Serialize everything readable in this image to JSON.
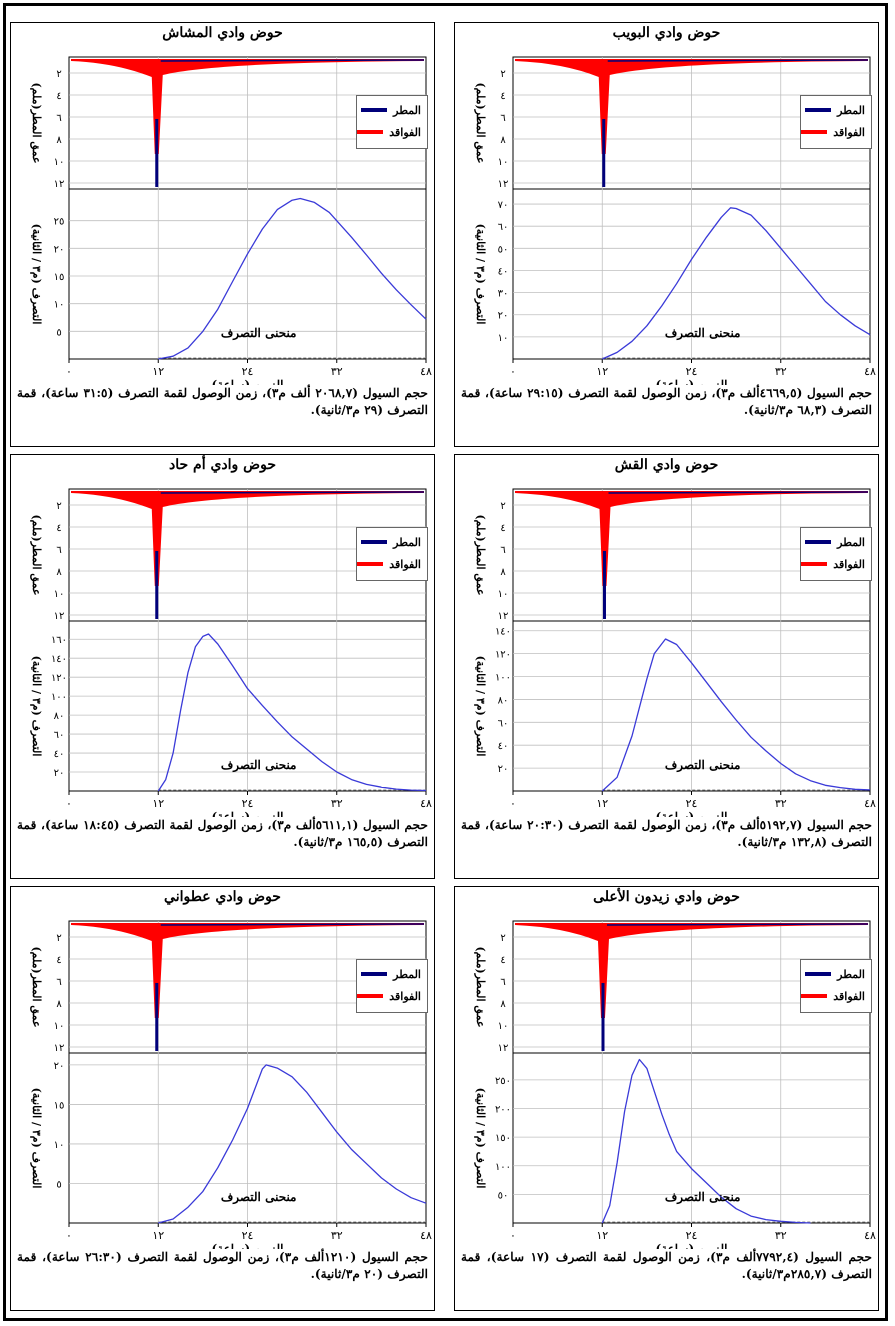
{
  "colors": {
    "rain": "#00007a",
    "losses": "#ff0000",
    "discharge": "#3a3ad8",
    "grid": "#bfbfbf"
  },
  "legend": {
    "rain": "المطر",
    "losses": "الفواقد"
  },
  "axes": {
    "rain_ylabel": "عمق المطر(ملم)",
    "discharge_ylabel": "التصرف (م٣ / الثانية)",
    "xlabel": "الزمن (ساعة)",
    "x_ticks": [
      "٠",
      "١٢",
      "٢٤",
      "٣٢",
      "٤٨"
    ],
    "rain_ticks": [
      "٢",
      "٤",
      "٦",
      "٨",
      "١٠",
      "١٢"
    ]
  },
  "curve_label": "منحنى التصرف",
  "panels": [
    {
      "title": "حوض وادي البويب",
      "caption": "حجم السيول (٤٦٦٩,٥ألف م٣)، زمن الوصول لقمة التصرف (٢٩:١٥ ساعة)، قمة التصرف (٦٨,٣ م٣/ثانية).",
      "discharge_ticks": [
        "١٠",
        "٢٠",
        "٣٠",
        "٤٠",
        "٥٠",
        "٦٠",
        "٧٠"
      ]
    },
    {
      "title": "حوض وادي المشاش",
      "caption": "حجم السيول (٢٠٦٨,٧ ألف م٣)، زمن الوصول لقمة التصرف (٣١:٥ ساعة)، قمة التصرف (٢٩ م٣/ثانية).",
      "discharge_ticks": [
        "٥",
        "١٠",
        "١٥",
        "٢٠",
        "٢٥"
      ]
    },
    {
      "title": "حوض وادي القش",
      "caption": "حجم السيول (٥١٩٢,٧ألف م٣)، زمن الوصول لقمة التصرف (٢٠:٣٠ ساعة)، قمة التصرف (١٣٢,٨ م٣/ثانية).",
      "discharge_ticks": [
        "٢٠",
        "٤٠",
        "٦٠",
        "٨٠",
        "١٠٠",
        "١٢٠",
        "١٤٠"
      ]
    },
    {
      "title": "حوض وادي أم حاد",
      "caption": "حجم السيول (٥٦١١,١ألف م٣)، زمن الوصول لقمة التصرف (١٨:٤٥ ساعة)، قمة التصرف (١٦٥,٥ م٣/ثانية).",
      "discharge_ticks": [
        "٢٠",
        "٤٠",
        "٦٠",
        "٨٠",
        "١٠٠",
        "١٢٠",
        "١٤٠",
        "١٦٠"
      ]
    },
    {
      "title": "حوض وادي زيدون الأعلى",
      "caption": "حجم السيول (٧٧٩٢,٤ألف م٣)، زمن الوصول لقمة التصرف (١٧ ساعة)، قمة التصرف (٢٨٥,٧م٣/ثانية).",
      "discharge_ticks": [
        "٥٠",
        "١٠٠",
        "١٥٠",
        "٢٠٠",
        "٢٥٠"
      ]
    },
    {
      "title": "حوض وادي عطواني",
      "caption": "حجم السيول (١٢١٠ألف م٣)، زمن الوصول لقمة التصرف (٢٦:٣٠ ساعة)، قمة التصرف (٢٠ م٣/ثانية).",
      "discharge_ticks": [
        "٥",
        "١٠",
        "١٥",
        "٢٠"
      ]
    }
  ],
  "chart_data": [
    {
      "type": "line",
      "title": "حوض وادي البويب",
      "xlabel": "الزمن (ساعة)",
      "ylabel": "التصرف (م٣ / الثانية)",
      "xlim": [
        0,
        48
      ],
      "ylim": [
        0,
        75
      ],
      "grid": true,
      "series": [
        {
          "name": "منحنى التصرف",
          "x": [
            12,
            14,
            16,
            18,
            20,
            22,
            24,
            26,
            28,
            29.25,
            30,
            32,
            34,
            36,
            38,
            40,
            42,
            44,
            46,
            48
          ],
          "y": [
            0,
            3,
            8,
            15,
            24,
            34,
            45,
            55,
            64,
            68.3,
            68,
            65,
            58,
            50,
            42,
            34,
            26,
            20,
            15,
            11
          ]
        }
      ]
    },
    {
      "type": "line",
      "title": "حوض وادي المشاش",
      "xlabel": "الزمن (ساعة)",
      "ylabel": "التصرف (م٣ / الثانية)",
      "xlim": [
        0,
        48
      ],
      "ylim": [
        0,
        30
      ],
      "grid": true,
      "series": [
        {
          "name": "منحنى التصرف",
          "x": [
            12,
            14,
            16,
            18,
            20,
            22,
            24,
            26,
            28,
            30,
            31.1,
            33,
            35,
            38,
            40,
            42,
            44,
            46,
            48
          ],
          "y": [
            0,
            0.5,
            2,
            5,
            9,
            14,
            19,
            23.5,
            27,
            28.7,
            29,
            28.3,
            26.5,
            22,
            18.8,
            15.5,
            12.5,
            9.8,
            7.2
          ]
        }
      ]
    },
    {
      "type": "line",
      "title": "حوض وادي القش",
      "xlabel": "الزمن (ساعة)",
      "ylabel": "التصرف (م٣ / الثانية)",
      "xlim": [
        0,
        48
      ],
      "ylim": [
        0,
        145
      ],
      "grid": true,
      "series": [
        {
          "name": "منحنى التصرف",
          "x": [
            12,
            14,
            16,
            18,
            19,
            20.5,
            22,
            24,
            26,
            28,
            30,
            32,
            34,
            36,
            38,
            40,
            42,
            44,
            46,
            48
          ],
          "y": [
            0,
            12,
            48,
            98,
            120,
            132.8,
            128,
            112,
            95,
            78,
            62,
            47,
            35,
            24,
            15,
            9,
            5,
            3,
            1.5,
            1
          ]
        }
      ]
    },
    {
      "type": "line",
      "title": "حوض وادي أم حاد",
      "xlabel": "الزمن (ساعة)",
      "ylabel": "التصرف (م٣ / الثانية)",
      "xlim": [
        0,
        48
      ],
      "ylim": [
        0,
        175
      ],
      "grid": true,
      "series": [
        {
          "name": "منحنى التصرف",
          "x": [
            12,
            13,
            14,
            15,
            16,
            17,
            18,
            18.75,
            20,
            22,
            24,
            26,
            28,
            30,
            32,
            34,
            36,
            38,
            40,
            42,
            44,
            46,
            48
          ],
          "y": [
            0,
            12,
            40,
            85,
            125,
            152,
            163,
            165.5,
            155,
            132,
            108,
            90,
            73,
            57,
            44,
            31,
            20,
            12,
            7,
            4,
            2,
            1,
            0.5
          ]
        }
      ]
    },
    {
      "type": "line",
      "title": "حوض وادي زيدون الأعلى",
      "xlabel": "الزمن (ساعة)",
      "ylabel": "التصرف (م٣ / الثانية)",
      "xlim": [
        0,
        48
      ],
      "ylim": [
        0,
        290
      ],
      "grid": true,
      "series": [
        {
          "name": "منحنى التصرف",
          "x": [
            12,
            13,
            14,
            15,
            16,
            17,
            18,
            19,
            20,
            21,
            22,
            24,
            26,
            28,
            30,
            32,
            34,
            36,
            38,
            40
          ],
          "y": [
            0,
            30,
            105,
            195,
            258,
            285.7,
            270,
            230,
            190,
            155,
            125,
            95,
            70,
            45,
            25,
            12,
            6,
            3,
            1,
            0
          ]
        }
      ]
    },
    {
      "type": "line",
      "title": "حوض وادي عطواني",
      "xlabel": "الزمن (ساعة)",
      "ylabel": "التصرف (م٣ / الثانية)",
      "xlim": [
        0,
        48
      ],
      "ylim": [
        0,
        21
      ],
      "grid": true,
      "series": [
        {
          "name": "منحنى التصرف",
          "x": [
            12,
            14,
            16,
            18,
            20,
            22,
            24,
            26,
            26.5,
            28,
            30,
            32,
            34,
            36,
            38,
            40,
            42,
            44,
            46,
            48
          ],
          "y": [
            0,
            0.5,
            2,
            4,
            7,
            10.5,
            14.5,
            19.5,
            20,
            19.6,
            18.5,
            16.5,
            14,
            11.5,
            9.3,
            7.5,
            5.7,
            4.3,
            3.2,
            2.5
          ]
        }
      ]
    }
  ]
}
